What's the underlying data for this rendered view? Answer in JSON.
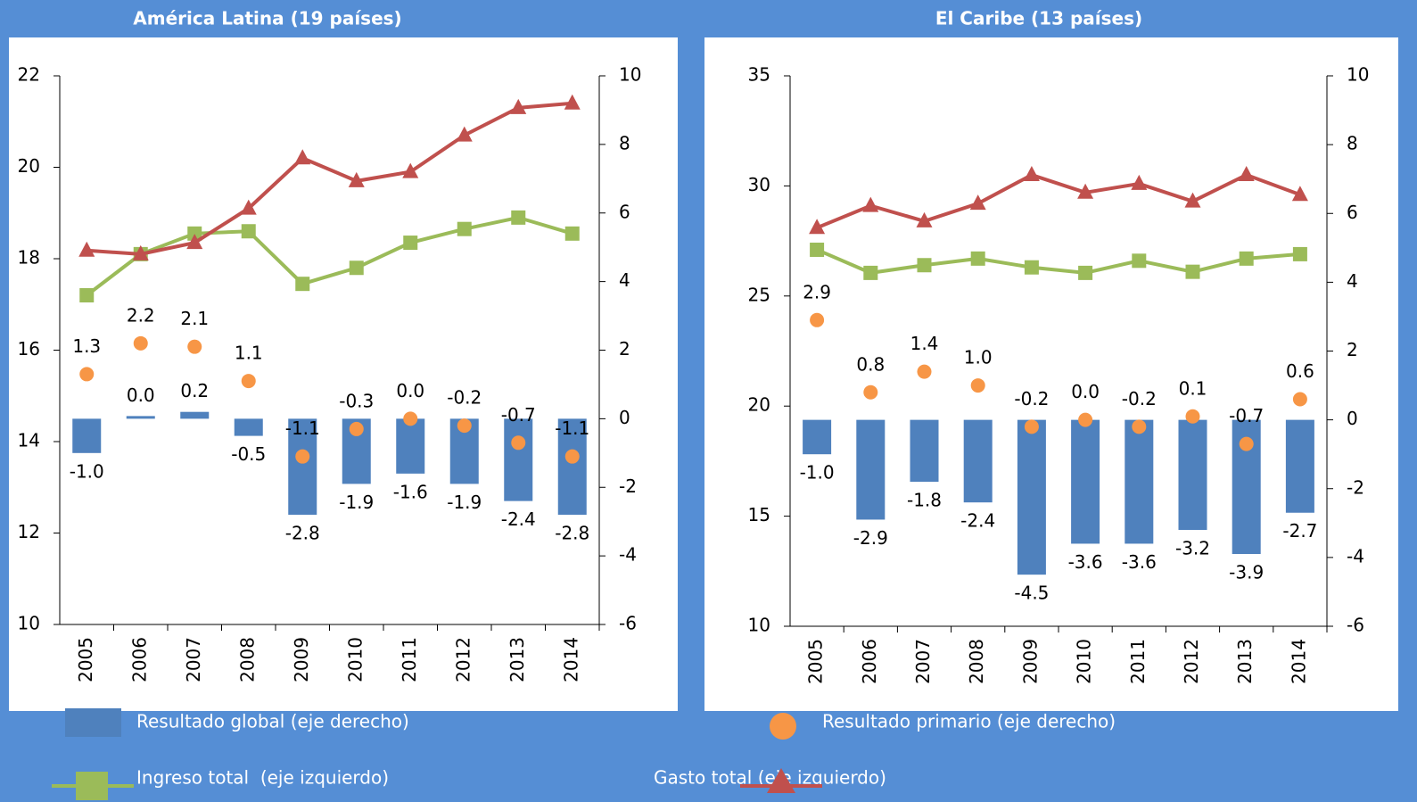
{
  "chart_data": [
    {
      "type": "combo",
      "title": "América Latina (19 países)",
      "categories": [
        "2005",
        "2006",
        "2007",
        "2008",
        "2009",
        "2010",
        "2011",
        "2012",
        "2013",
        "2014"
      ],
      "ylim": [
        10,
        22
      ],
      "yticks": [
        10,
        12,
        14,
        16,
        18,
        20,
        22
      ],
      "y2lim": [
        -6,
        10
      ],
      "y2ticks": [
        -6,
        -4,
        -2,
        0,
        2,
        4,
        6,
        8,
        10
      ],
      "series": [
        {
          "name": "Resultado global (eje derecho)",
          "type": "bar",
          "axis": "y2",
          "color": "#4f81bd",
          "values": [
            -1.0,
            0.0,
            0.2,
            -0.5,
            -2.8,
            -1.9,
            -1.6,
            -1.9,
            -2.4,
            -2.8
          ],
          "value_labels": [
            "-1.0",
            "0.0",
            "0.2",
            "-0.5",
            "-2.8",
            "-1.9",
            "-1.6",
            "-1.9",
            "-2.4",
            "-2.8"
          ]
        },
        {
          "name": "Resultado primario (eje derecho)",
          "type": "dot",
          "axis": "y2",
          "color": "#f79646",
          "values": [
            1.3,
            2.2,
            2.1,
            1.1,
            -1.1,
            -0.3,
            0.0,
            -0.2,
            -0.7,
            -1.1
          ],
          "value_labels": [
            "1.3",
            "2.2",
            "2.1",
            "1.1",
            "-1.1",
            "-0.3",
            "0.0",
            "-0.2",
            "-0.7",
            "-1.1"
          ]
        },
        {
          "name": "Ingreso total  (eje izquierdo)",
          "type": "line",
          "marker": "square",
          "color": "#9bbb59",
          "values": [
            17.2,
            18.1,
            18.55,
            18.6,
            17.45,
            17.8,
            18.35,
            18.65,
            18.9,
            18.55
          ]
        },
        {
          "name": "Gasto total (eje izquierdo)",
          "type": "line",
          "marker": "triangle",
          "color": "#c0504d",
          "values": [
            18.18,
            18.1,
            18.35,
            19.1,
            20.2,
            19.7,
            19.9,
            20.7,
            21.3,
            21.4
          ]
        }
      ]
    },
    {
      "type": "combo",
      "title": "El Caribe (13 países)",
      "categories": [
        "2005",
        "2006",
        "2007",
        "2008",
        "2009",
        "2010",
        "2011",
        "2012",
        "2013",
        "2014"
      ],
      "ylim": [
        10,
        35
      ],
      "yticks": [
        10,
        15,
        20,
        25,
        30,
        35
      ],
      "y2lim": [
        -6,
        10
      ],
      "y2ticks": [
        -6,
        -4,
        -2,
        0,
        2,
        4,
        6,
        8,
        10
      ],
      "series": [
        {
          "type": "bar",
          "axis": "y2",
          "color": "#4f81bd",
          "values": [
            -1.0,
            -2.9,
            -1.8,
            -2.4,
            -4.5,
            -3.6,
            -3.6,
            -3.2,
            -3.9,
            -2.7
          ],
          "value_labels": [
            "-1.0",
            "-2.9",
            "-1.8",
            "-2.4",
            "-4.5",
            "-3.6",
            "-3.6",
            "-3.2",
            "-3.9",
            "-2.7"
          ]
        },
        {
          "type": "dot",
          "axis": "y2",
          "color": "#f79646",
          "values": [
            2.9,
            0.8,
            1.4,
            1.0,
            -0.2,
            0.0,
            -0.2,
            0.1,
            -0.7,
            0.6
          ],
          "value_labels": [
            "2.9",
            "0.8",
            "1.4",
            "1.0",
            "-0.2",
            "0.0",
            "-0.2",
            "0.1",
            "-0.7",
            "0.6"
          ]
        },
        {
          "type": "line",
          "marker": "square",
          "color": "#9bbb59",
          "values": [
            27.1,
            26.05,
            26.4,
            26.7,
            26.3,
            26.05,
            26.6,
            26.1,
            26.7,
            26.9
          ]
        },
        {
          "type": "line",
          "marker": "triangle",
          "color": "#c0504d",
          "values": [
            28.1,
            29.1,
            28.4,
            29.2,
            30.5,
            29.7,
            30.1,
            29.3,
            30.5,
            29.6
          ]
        }
      ]
    }
  ]
}
